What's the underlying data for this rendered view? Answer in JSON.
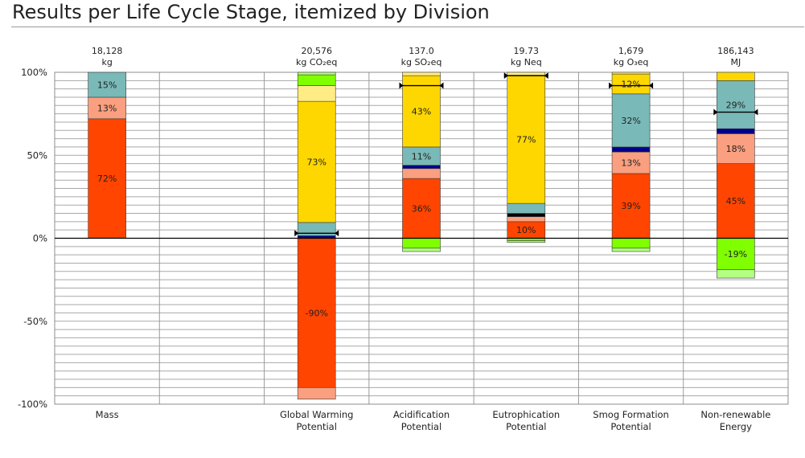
{
  "page": {
    "title": "Results per Life Cycle Stage, itemized by Division"
  },
  "chart_data": {
    "type": "bar",
    "stacked": true,
    "ylim": [
      -100,
      100
    ],
    "y_tick_labels": [
      "100%",
      "50%",
      "0%",
      "-50%",
      "-100%"
    ],
    "y_ticks": [
      100,
      50,
      0,
      -50,
      -100
    ],
    "grid": true,
    "categories": [
      {
        "top": "18,128",
        "unit": "kg",
        "name": [
          "Mass"
        ]
      },
      {
        "top": "",
        "unit": "",
        "name": []
      },
      {
        "top": "20,576",
        "unit": "kg CO₂eq",
        "name": [
          "Global Warming",
          "Potential"
        ]
      },
      {
        "top": "137.0",
        "unit": "kg SO₂eq",
        "name": [
          "Acidification",
          "Potential"
        ]
      },
      {
        "top": "19.73",
        "unit": "kg Neq",
        "name": [
          "Eutrophication",
          "Potential"
        ]
      },
      {
        "top": "1,679",
        "unit": "kg O₃eq",
        "name": [
          "Smog Formation",
          "Potential"
        ]
      },
      {
        "top": "186,143",
        "unit": "MJ",
        "name": [
          "Non-renewable",
          "Energy"
        ]
      }
    ],
    "colors": {
      "red": "#ff4500",
      "salmon": "#fa9f7f",
      "navy": "#00008b",
      "teal": "#79b9b8",
      "yellow": "#fed700",
      "lightyellow": "#ffec84",
      "green": "#80ff00",
      "lightgreen": "#b3ff80",
      "black": "#000000"
    },
    "stacks": [
      [
        {
          "from": 0,
          "to": 72,
          "color": "red",
          "label": "72%"
        },
        {
          "from": 72,
          "to": 85,
          "color": "salmon",
          "label": "13%"
        },
        {
          "from": 85,
          "to": 100,
          "color": "teal",
          "label": "15%"
        }
      ],
      [],
      [
        {
          "from": 0,
          "to": 1.5,
          "color": "navy",
          "label": ""
        },
        {
          "from": 1.5,
          "to": 9.5,
          "color": "teal",
          "label": ""
        },
        {
          "from": 9.5,
          "to": 82.5,
          "color": "yellow",
          "label": "73%"
        },
        {
          "from": 82.5,
          "to": 92,
          "color": "lightyellow",
          "label": ""
        },
        {
          "from": 92,
          "to": 98.5,
          "color": "green",
          "label": ""
        },
        {
          "from": 98.5,
          "to": 100,
          "color": "lightgreen",
          "label": ""
        },
        {
          "from": -90,
          "to": 0,
          "color": "red",
          "label": "-90%"
        },
        {
          "from": -97,
          "to": -90,
          "color": "salmon",
          "label": ""
        }
      ],
      [
        {
          "from": 0,
          "to": 36,
          "color": "red",
          "label": "36%"
        },
        {
          "from": 36,
          "to": 42,
          "color": "salmon",
          "label": ""
        },
        {
          "from": 42,
          "to": 44,
          "color": "navy",
          "label": ""
        },
        {
          "from": 44,
          "to": 55,
          "color": "teal",
          "label": "11%"
        },
        {
          "from": 55,
          "to": 98,
          "color": "yellow",
          "label": "43%"
        },
        {
          "from": 98,
          "to": 100,
          "color": "lightyellow",
          "label": ""
        },
        {
          "from": -6,
          "to": 0,
          "color": "green",
          "label": ""
        },
        {
          "from": -8,
          "to": -6,
          "color": "lightgreen",
          "label": ""
        }
      ],
      [
        {
          "from": 0,
          "to": 10,
          "color": "red",
          "label": "10%"
        },
        {
          "from": 10,
          "to": 13,
          "color": "salmon",
          "label": ""
        },
        {
          "from": 13,
          "to": 15,
          "color": "black",
          "label": ""
        },
        {
          "from": 15,
          "to": 21,
          "color": "teal",
          "label": ""
        },
        {
          "from": 21,
          "to": 98,
          "color": "yellow",
          "label": "77%"
        },
        {
          "from": 98,
          "to": 100,
          "color": "lightyellow",
          "label": ""
        },
        {
          "from": -1.5,
          "to": 0,
          "color": "green",
          "label": ""
        },
        {
          "from": -2.5,
          "to": -1.5,
          "color": "lightgreen",
          "label": ""
        }
      ],
      [
        {
          "from": 0,
          "to": 39,
          "color": "red",
          "label": "39%"
        },
        {
          "from": 39,
          "to": 52,
          "color": "salmon",
          "label": "13%"
        },
        {
          "from": 52,
          "to": 55,
          "color": "navy",
          "label": ""
        },
        {
          "from": 55,
          "to": 87,
          "color": "teal",
          "label": "32%"
        },
        {
          "from": 87,
          "to": 99,
          "color": "yellow",
          "label": "12%"
        },
        {
          "from": 99,
          "to": 100,
          "color": "lightyellow",
          "label": ""
        },
        {
          "from": -6,
          "to": 0,
          "color": "green",
          "label": ""
        },
        {
          "from": -8,
          "to": -6,
          "color": "lightgreen",
          "label": ""
        }
      ],
      [
        {
          "from": 0,
          "to": 45,
          "color": "red",
          "label": "45%"
        },
        {
          "from": 45,
          "to": 63,
          "color": "salmon",
          "label": "18%"
        },
        {
          "from": 63,
          "to": 66,
          "color": "navy",
          "label": ""
        },
        {
          "from": 66,
          "to": 95,
          "color": "teal",
          "label": "29%"
        },
        {
          "from": 95,
          "to": 100,
          "color": "yellow",
          "label": ""
        },
        {
          "from": -19,
          "to": 0,
          "color": "green",
          "label": "-19%"
        },
        {
          "from": -24,
          "to": -19,
          "color": "lightgreen",
          "label": ""
        }
      ]
    ],
    "net_markers": [
      null,
      null,
      3,
      92,
      98,
      92,
      76
    ]
  }
}
